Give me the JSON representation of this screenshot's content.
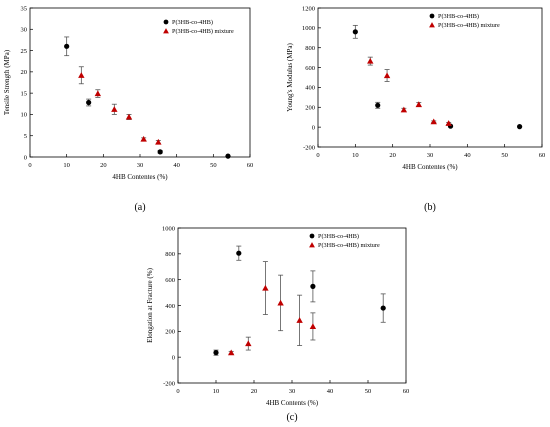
{
  "chart_data": [
    {
      "type": "scatter",
      "panel_label": "(a)",
      "title": "",
      "xlabel": "4HB Contentes (%)",
      "ylabel": "Tensile Strength (MPa)",
      "xlim": [
        0,
        60
      ],
      "ylim": [
        0,
        35
      ],
      "xticks": [
        0,
        10,
        20,
        30,
        40,
        50,
        60
      ],
      "yticks": [
        0,
        5,
        10,
        15,
        20,
        25,
        30,
        35
      ],
      "grid": false,
      "legend_position": "top-right",
      "series": [
        {
          "name": "P(3HB-co-4HB)",
          "marker": "circle",
          "color": "#000000",
          "points": [
            {
              "x": 10,
              "y": 26.0,
              "err": 2.2
            },
            {
              "x": 16,
              "y": 12.8,
              "err": 0.8
            },
            {
              "x": 35.5,
              "y": 1.2,
              "err": 0.3
            },
            {
              "x": 54,
              "y": 0.2,
              "err": 0
            }
          ]
        },
        {
          "name": "P(3HB-co-4HB) mixture",
          "marker": "triangle",
          "color": "#c00000",
          "points": [
            {
              "x": 14,
              "y": 19.2,
              "err": 2.0
            },
            {
              "x": 18.5,
              "y": 14.9,
              "err": 0.9
            },
            {
              "x": 23,
              "y": 11.2,
              "err": 1.2
            },
            {
              "x": 27,
              "y": 9.4,
              "err": 0.6
            },
            {
              "x": 31,
              "y": 4.2,
              "err": 0.3
            },
            {
              "x": 35,
              "y": 3.5,
              "err": 0.4
            }
          ]
        }
      ]
    },
    {
      "type": "scatter",
      "panel_label": "(b)",
      "title": "",
      "xlabel": "4HB Contentes (%)",
      "ylabel": "Young's Modulus (MPa)",
      "xlim": [
        0,
        60
      ],
      "ylim": [
        -200,
        1200
      ],
      "xticks": [
        0,
        10,
        20,
        30,
        40,
        50,
        60
      ],
      "yticks": [
        -200,
        0,
        200,
        400,
        600,
        800,
        1000,
        1200
      ],
      "grid": false,
      "legend_position": "top-right",
      "series": [
        {
          "name": "P(3HB-co-4HB)",
          "marker": "circle",
          "color": "#000000",
          "points": [
            {
              "x": 10,
              "y": 960,
              "err": 65
            },
            {
              "x": 16,
              "y": 220,
              "err": 30
            },
            {
              "x": 35.5,
              "y": 10,
              "err": 8
            },
            {
              "x": 54,
              "y": 5,
              "err": 0
            }
          ]
        },
        {
          "name": "P(3HB-co-4HB) mixture",
          "marker": "triangle",
          "color": "#c00000",
          "points": [
            {
              "x": 14,
              "y": 665,
              "err": 40
            },
            {
              "x": 18.5,
              "y": 520,
              "err": 60
            },
            {
              "x": 23,
              "y": 175,
              "err": 15
            },
            {
              "x": 27,
              "y": 228,
              "err": 20
            },
            {
              "x": 31,
              "y": 55,
              "err": 8
            },
            {
              "x": 35,
              "y": 38,
              "err": 10
            }
          ]
        }
      ]
    },
    {
      "type": "scatter",
      "panel_label": "(c)",
      "title": "",
      "xlabel": "4HB Contents (%)",
      "ylabel": "Elongation at Fracture (%)",
      "xlim": [
        0,
        60
      ],
      "ylim": [
        -200,
        1000
      ],
      "xticks": [
        0,
        10,
        20,
        30,
        40,
        50,
        60
      ],
      "yticks": [
        -200,
        0,
        200,
        400,
        600,
        800,
        1000
      ],
      "grid": false,
      "legend_position": "top-right",
      "series": [
        {
          "name": "P(3HB-co-4HB)",
          "marker": "circle",
          "color": "#000000",
          "points": [
            {
              "x": 10,
              "y": 35,
              "err": 20
            },
            {
              "x": 16,
              "y": 805,
              "err": 55
            },
            {
              "x": 35.5,
              "y": 548,
              "err": 120
            },
            {
              "x": 54,
              "y": 380,
              "err": 110
            }
          ]
        },
        {
          "name": "P(3HB-co-4HB) mixture",
          "marker": "triangle",
          "color": "#c00000",
          "points": [
            {
              "x": 14,
              "y": 35,
              "err": 10
            },
            {
              "x": 18.5,
              "y": 105,
              "err": 50
            },
            {
              "x": 23,
              "y": 535,
              "err": 205
            },
            {
              "x": 27,
              "y": 420,
              "err": 215
            },
            {
              "x": 32,
              "y": 285,
              "err": 195
            },
            {
              "x": 35.5,
              "y": 238,
              "err": 105
            }
          ]
        }
      ]
    }
  ]
}
